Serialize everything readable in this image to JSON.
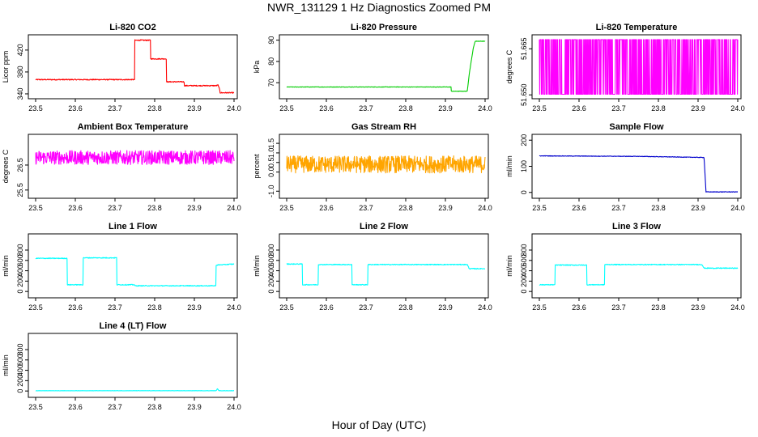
{
  "page": {
    "title": "NWR_131129  1 Hz Diagnostics Zoomed PM",
    "x_axis_label": "Hour of Day (UTC)"
  },
  "chart_data": [
    {
      "type": "line",
      "title": "Li-820 CO2",
      "xlabel": "",
      "ylabel": "Licor ppm",
      "xlim": [
        23.5,
        24.0
      ],
      "ylim": [
        337,
        442
      ],
      "xticks": [
        "23.5",
        "23.6",
        "23.7",
        "23.8",
        "23.9",
        "24.0"
      ],
      "yticks": [
        340,
        380,
        420
      ],
      "color": "#ff0000",
      "noise": 0.9,
      "series": [
        {
          "x": [
            23.5,
            23.75,
            23.75,
            23.79,
            23.79,
            23.83,
            23.83,
            23.875,
            23.875,
            23.955,
            23.96,
            23.965,
            23.965,
            24.0
          ],
          "values": [
            366,
            366,
            438,
            438,
            404,
            404,
            362,
            362,
            355,
            355,
            356,
            345,
            342,
            342
          ]
        }
      ]
    },
    {
      "type": "line",
      "title": "Li-820 Pressure",
      "xlabel": "",
      "ylabel": "kPa",
      "xlim": [
        23.5,
        24.0
      ],
      "ylim": [
        64,
        91
      ],
      "xticks": [
        "23.5",
        "23.6",
        "23.7",
        "23.8",
        "23.9",
        "24.0"
      ],
      "yticks": [
        70,
        80,
        90
      ],
      "color": "#00cc00",
      "noise": 0.1,
      "series": [
        {
          "x": [
            23.5,
            23.915,
            23.915,
            23.955,
            23.96,
            23.97,
            23.975,
            24.0
          ],
          "values": [
            68,
            68,
            66,
            66,
            74,
            86,
            89.5,
            89.5
          ]
        }
      ]
    },
    {
      "type": "line",
      "title": "Li-820 Temperature",
      "xlabel": "",
      "ylabel": "degrees C",
      "xlim": [
        23.5,
        24.0
      ],
      "ylim": [
        51.6498,
        51.6685
      ],
      "xticks": [
        "23.5",
        "23.6",
        "23.7",
        "23.8",
        "23.9",
        "24.0"
      ],
      "yticks": [
        51.65,
        51.665
      ],
      "ytick_labels": [
        "51.650",
        "51.665"
      ],
      "color": "#ff00ff",
      "noise": 0,
      "pattern": "binary",
      "series": [
        {
          "x": [
            23.5,
            24.0
          ],
          "values": [
            51.6502,
            51.668
          ]
        }
      ]
    },
    {
      "type": "line",
      "title": "Ambient Box Temperature",
      "xlabel": "",
      "ylabel": "degrees C",
      "xlim": [
        23.5,
        24.0
      ],
      "ylim": [
        25.3,
        27.6
      ],
      "xticks": [
        "23.5",
        "23.6",
        "23.7",
        "23.8",
        "23.9",
        "24.0"
      ],
      "yticks": [
        25.5,
        26.5
      ],
      "color": "#ff00ff",
      "noise": 0.28,
      "series": [
        {
          "x": [
            23.5,
            24.0
          ],
          "values": [
            26.8,
            26.8
          ]
        }
      ]
    },
    {
      "type": "line",
      "title": "Gas Stream RH",
      "xlabel": "",
      "ylabel": "percent",
      "xlim": [
        23.5,
        24.0
      ],
      "ylim": [
        -1.2,
        1.8
      ],
      "xticks": [
        "23.5",
        "23.6",
        "23.7",
        "23.8",
        "23.9",
        "24.0"
      ],
      "yticks": [
        -1.0,
        0.0,
        0.5,
        1.0,
        1.5
      ],
      "ytick_labels": [
        "-1.0",
        "0.0",
        "0.5",
        "1.0",
        "1.5"
      ],
      "color": "#ffa500",
      "noise": 0.45,
      "series": [
        {
          "x": [
            23.5,
            24.0
          ],
          "values": [
            0.4,
            0.4
          ]
        }
      ]
    },
    {
      "type": "line",
      "title": "Sample Flow",
      "xlabel": "",
      "ylabel": "ml/min",
      "xlim": [
        23.5,
        24.0
      ],
      "ylim": [
        -10,
        210
      ],
      "xticks": [
        "23.5",
        "23.6",
        "23.7",
        "23.8",
        "23.9",
        "24.0"
      ],
      "yticks": [
        0,
        100,
        200
      ],
      "color": "#0000cc",
      "noise": 1,
      "series": [
        {
          "x": [
            23.5,
            23.75,
            23.91,
            23.915,
            23.92,
            24.0
          ],
          "values": [
            140,
            138,
            134,
            134,
            2,
            2
          ]
        }
      ]
    },
    {
      "type": "line",
      "title": "Line 1 Flow",
      "xlabel": "",
      "ylabel": "ml/min",
      "xlim": [
        23.5,
        24.0
      ],
      "ylim": [
        -60,
        1050
      ],
      "xticks": [
        "23.5",
        "23.6",
        "23.7",
        "23.8",
        "23.9",
        "24.0"
      ],
      "yticks": [
        0,
        200,
        400,
        600,
        800
      ],
      "color": "#00ffff",
      "noise": 8,
      "series": [
        {
          "x": [
            23.5,
            23.5,
            23.58,
            23.58,
            23.62,
            23.62,
            23.705,
            23.705,
            23.75,
            23.75,
            23.955,
            23.955,
            24.0
          ],
          "values": [
            150,
            640,
            640,
            130,
            130,
            650,
            650,
            130,
            130,
            110,
            110,
            510,
            530
          ]
        }
      ]
    },
    {
      "type": "line",
      "title": "Line 2 Flow",
      "xlabel": "",
      "ylabel": "ml/min",
      "xlim": [
        23.5,
        24.0
      ],
      "ylim": [
        -60,
        1050
      ],
      "xticks": [
        "23.5",
        "23.6",
        "23.7",
        "23.8",
        "23.9",
        "24.0"
      ],
      "yticks": [
        0,
        200,
        400,
        600,
        800
      ],
      "color": "#00ffff",
      "noise": 8,
      "series": [
        {
          "x": [
            23.5,
            23.54,
            23.54,
            23.58,
            23.58,
            23.665,
            23.665,
            23.705,
            23.705,
            23.955,
            23.96,
            24.0
          ],
          "values": [
            530,
            530,
            130,
            130,
            520,
            520,
            130,
            130,
            520,
            520,
            440,
            440
          ]
        }
      ]
    },
    {
      "type": "line",
      "title": "Line 3 Flow",
      "xlabel": "",
      "ylabel": "ml/min",
      "xlim": [
        23.5,
        24.0
      ],
      "ylim": [
        -60,
        1050
      ],
      "xticks": [
        "23.5",
        "23.6",
        "23.7",
        "23.8",
        "23.9",
        "24.0"
      ],
      "yticks": [
        0,
        200,
        400,
        600,
        800
      ],
      "color": "#00ffff",
      "noise": 8,
      "series": [
        {
          "x": [
            23.5,
            23.5,
            23.54,
            23.54,
            23.62,
            23.62,
            23.665,
            23.665,
            23.91,
            23.915,
            24.0
          ],
          "values": [
            530,
            130,
            130,
            510,
            510,
            130,
            130,
            520,
            520,
            450,
            450
          ]
        }
      ]
    },
    {
      "type": "line",
      "title": "Line 4 (LT) Flow",
      "xlabel": "",
      "ylabel": "ml/min",
      "xlim": [
        23.5,
        24.0
      ],
      "ylim": [
        -60,
        1050
      ],
      "xticks": [
        "23.5",
        "23.6",
        "23.7",
        "23.8",
        "23.9",
        "24.0"
      ],
      "yticks": [
        0,
        200,
        400,
        600,
        800
      ],
      "color": "#00ffff",
      "noise": 2,
      "series": [
        {
          "x": [
            23.5,
            23.955,
            23.958,
            23.962,
            24.0
          ],
          "values": [
            5,
            5,
            45,
            5,
            5
          ]
        }
      ]
    }
  ]
}
